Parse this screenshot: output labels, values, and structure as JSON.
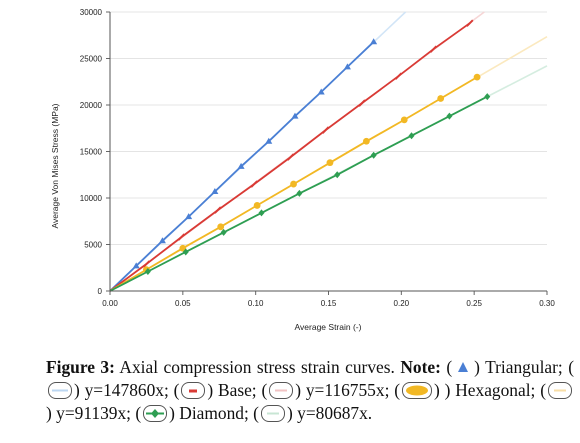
{
  "chart_data": {
    "type": "line",
    "xlabel": "Average Strain (-)",
    "ylabel": "Average Von Mises Stress (MPa)",
    "xlim": [
      0,
      0.3
    ],
    "ylim": [
      0,
      30000
    ],
    "x_ticks": [
      "0.00",
      "0.05",
      "0.10",
      "0.15",
      "0.20",
      "0.25",
      "0.30"
    ],
    "y_ticks": [
      "0",
      "5000",
      "10000",
      "15000",
      "20000",
      "25000",
      "30000"
    ],
    "grid": "horizontal",
    "series": [
      {
        "name": "Triangular",
        "color": "#4a7fd4",
        "marker": "triangle",
        "slope": 147860,
        "x": [
          0,
          0.018,
          0.036,
          0.054,
          0.072,
          0.09,
          0.109,
          0.127,
          0.145,
          0.163,
          0.181
        ],
        "y": [
          0,
          2700,
          5400,
          8000,
          10700,
          13400,
          16100,
          18800,
          21400,
          24100,
          26800
        ]
      },
      {
        "name": "Base",
        "color": "#d93a35",
        "marker": "dash",
        "slope": 116755,
        "x": [
          0,
          0.025,
          0.049,
          0.074,
          0.099,
          0.124,
          0.148,
          0.173,
          0.198,
          0.222,
          0.247
        ],
        "y": [
          0,
          2900,
          5800,
          8700,
          11500,
          14400,
          17300,
          20200,
          23100,
          26000,
          28800
        ]
      },
      {
        "name": "Hexagonal",
        "color": "#f2b824",
        "marker": "ellipse",
        "slope": 91139,
        "x": [
          0,
          0.025,
          0.05,
          0.076,
          0.101,
          0.126,
          0.151,
          0.176,
          0.202,
          0.227,
          0.252
        ],
        "y": [
          0,
          2300,
          4600,
          6900,
          9200,
          11500,
          13800,
          16100,
          18400,
          20700,
          23000
        ]
      },
      {
        "name": "Diamond",
        "color": "#2e9e52",
        "marker": "diamond",
        "slope": 80687,
        "x": [
          0,
          0.026,
          0.052,
          0.078,
          0.104,
          0.13,
          0.156,
          0.181,
          0.207,
          0.233,
          0.259
        ],
        "y": [
          0,
          2100,
          4200,
          6300,
          8400,
          10500,
          12500,
          14600,
          16700,
          18800,
          20900
        ]
      }
    ],
    "fits": [
      {
        "color": "#d2e5f7",
        "slope": 147860
      },
      {
        "color": "#f6d6d6",
        "slope": 116755
      },
      {
        "color": "#fbe9bf",
        "slope": 91139
      },
      {
        "color": "#d5ede0",
        "slope": 80687
      }
    ]
  },
  "caption": {
    "label": "Figure 3:",
    "text_1": " Axial compression stress strain curves. ",
    "note": "Note:",
    "t1": "Triangular; (",
    "t2": ") y=147860x; (",
    "t3": ") Base; (",
    "t4": ") y=116755x; (",
    "t5": ") Hexagonal; (",
    "t6": ") y=91139x; (",
    "t7": ") Diamond; (",
    "t8": ") y=80687x."
  }
}
